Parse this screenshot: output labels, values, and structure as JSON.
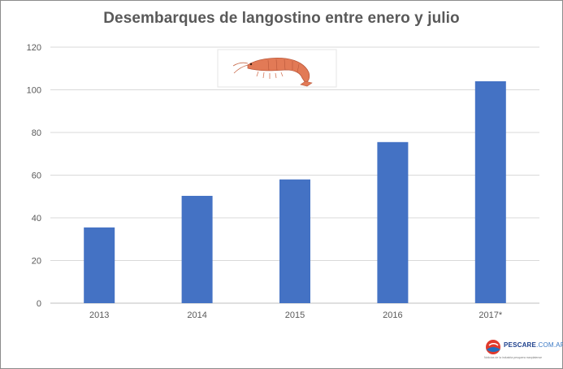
{
  "chart_data": {
    "type": "bar",
    "title": "Desembarques de langostino entre enero y julio",
    "xlabel": "",
    "ylabel": "",
    "categories": [
      "2013",
      "2014",
      "2015",
      "2016",
      "2017*"
    ],
    "values": [
      35.5,
      50.3,
      58,
      75.5,
      104
    ],
    "ylim": [
      0,
      120
    ],
    "yticks": [
      "0",
      "20",
      "40",
      "60",
      "80",
      "100",
      "120"
    ],
    "grid": true,
    "legend": "none",
    "bar_color": "#4472C4"
  },
  "decorations": {
    "illustration_icon": "shrimp-illustration",
    "logo": {
      "icon": "fish-logo-icon",
      "wordmark": "PESCARE",
      "domain": ".COM.AR",
      "tagline": "Noticias de la industria pesquera marplatense"
    }
  }
}
